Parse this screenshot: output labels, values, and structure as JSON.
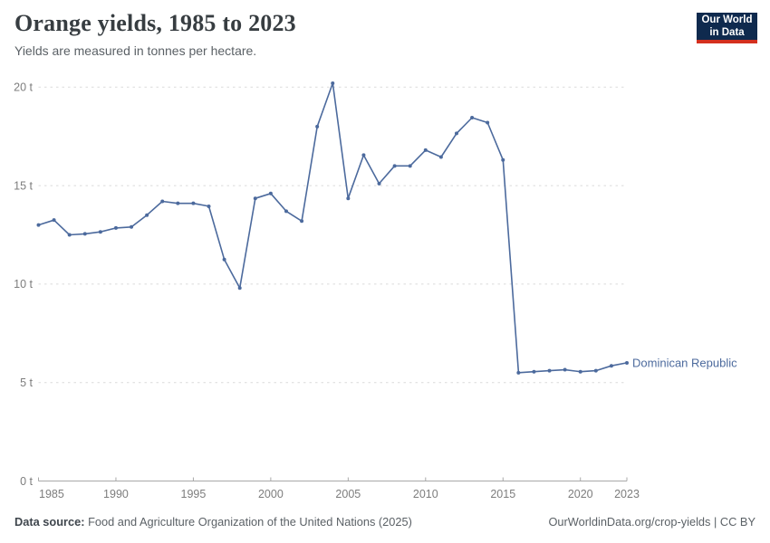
{
  "header": {
    "title": "Orange yields, 1985 to 2023",
    "subtitle": "Yields are measured in tonnes per hectare.",
    "logo": {
      "line1": "Our World",
      "line2": "in Data"
    }
  },
  "chart_data": {
    "type": "line",
    "title": "Orange yields, 1985 to 2023",
    "ylabel": "tonnes per hectare",
    "xlabel": "",
    "ylim": [
      0,
      20
    ],
    "grid": "horizontal-dashed",
    "legend_position": "end-of-line",
    "x": [
      1985,
      1986,
      1987,
      1988,
      1989,
      1990,
      1991,
      1992,
      1993,
      1994,
      1995,
      1996,
      1997,
      1998,
      1999,
      2000,
      2001,
      2002,
      2003,
      2004,
      2005,
      2006,
      2007,
      2008,
      2009,
      2010,
      2011,
      2012,
      2013,
      2014,
      2015,
      2016,
      2017,
      2018,
      2019,
      2020,
      2021,
      2022,
      2023
    ],
    "series": [
      {
        "name": "Dominican Republic",
        "color": "#4c6a9d",
        "values": [
          13.0,
          13.25,
          12.5,
          12.55,
          12.65,
          12.85,
          12.9,
          13.5,
          14.2,
          14.1,
          14.1,
          13.95,
          11.25,
          9.8,
          14.35,
          14.6,
          13.7,
          13.2,
          18.0,
          20.2,
          14.35,
          16.55,
          15.1,
          16.0,
          16.0,
          16.8,
          16.45,
          17.65,
          18.45,
          18.2,
          16.3,
          5.5,
          5.55,
          5.6,
          5.65,
          5.55,
          5.6,
          5.85,
          6.0
        ]
      }
    ],
    "y_ticks": [
      {
        "value": 0,
        "label": "0 t"
      },
      {
        "value": 5,
        "label": "5 t"
      },
      {
        "value": 10,
        "label": "10 t"
      },
      {
        "value": 15,
        "label": "15 t"
      },
      {
        "value": 20,
        "label": "20 t"
      }
    ],
    "x_ticks": [
      {
        "value": 1985,
        "label": "1985"
      },
      {
        "value": 1990,
        "label": "1990"
      },
      {
        "value": 1995,
        "label": "1995"
      },
      {
        "value": 2000,
        "label": "2000"
      },
      {
        "value": 2005,
        "label": "2005"
      },
      {
        "value": 2010,
        "label": "2010"
      },
      {
        "value": 2015,
        "label": "2015"
      },
      {
        "value": 2020,
        "label": "2020"
      },
      {
        "value": 2023,
        "label": "2023"
      }
    ]
  },
  "footer": {
    "source_label": "Data source:",
    "source_text": " Food and Agriculture Organization of the United Nations (2025)",
    "credit": "OurWorldinData.org/crop-yields | CC BY"
  },
  "colors": {
    "line": "#4c6a9d",
    "gridline": "#dadada",
    "axis": "#a8a8a8",
    "tick_label": "#7d7d7d",
    "logo_bg": "#0f2a4e",
    "logo_red": "#d4301f"
  }
}
